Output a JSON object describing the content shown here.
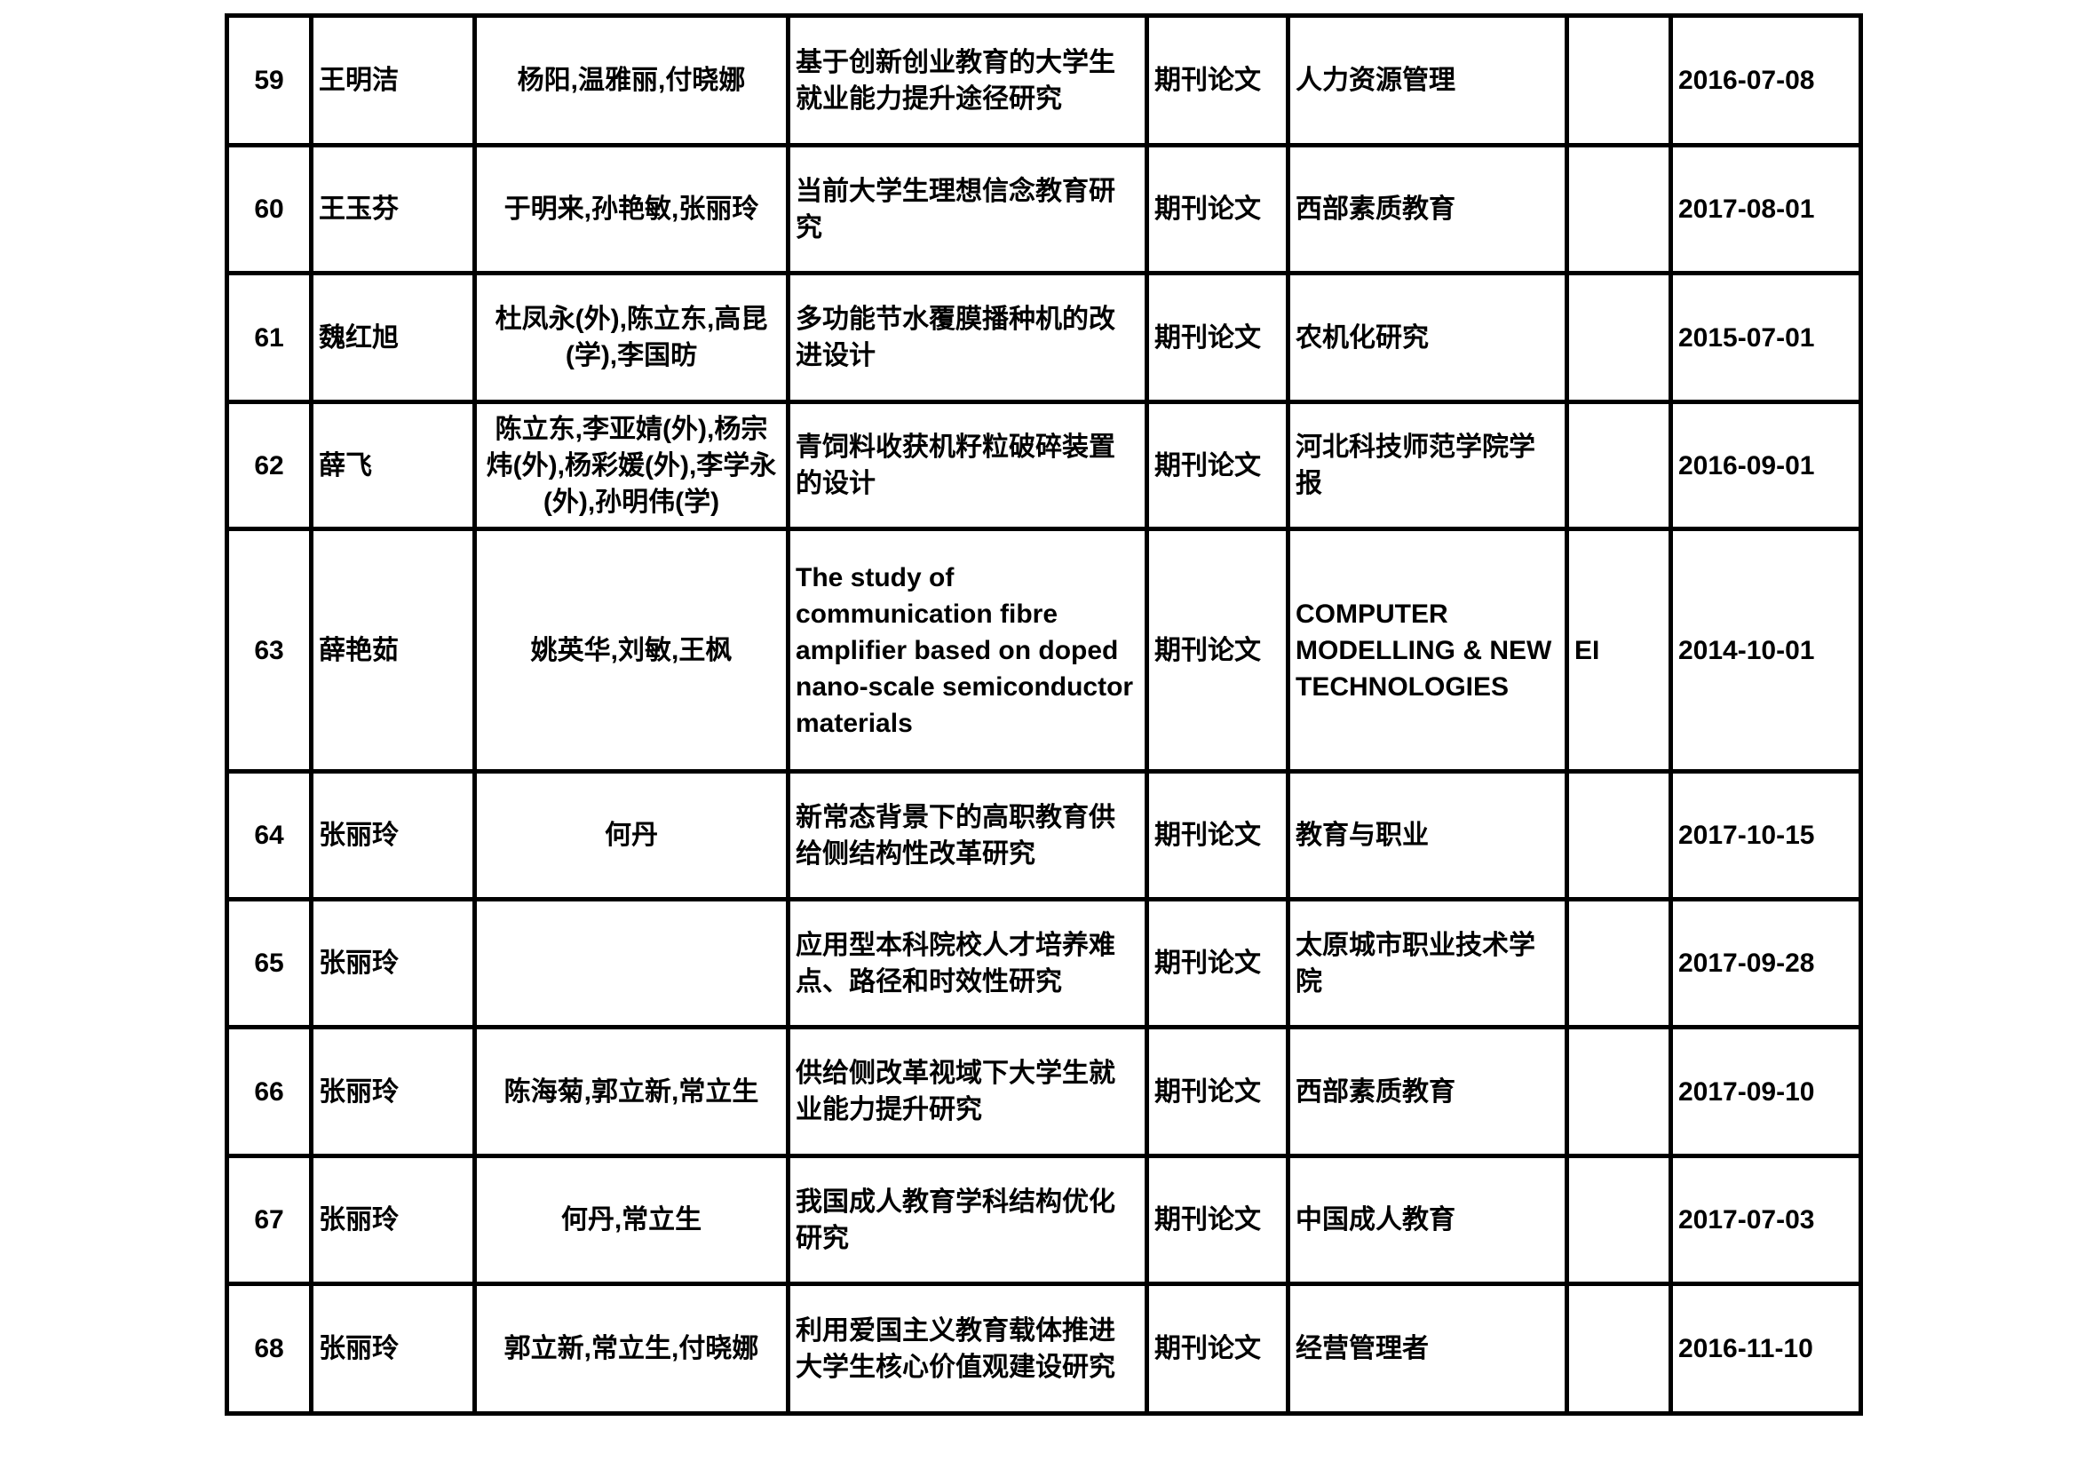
{
  "rows": [
    {
      "no": "59",
      "author": "王明洁",
      "coauthors": "杨阳,温雅丽,付晓娜",
      "title": "基于创新创业教育的大学生就业能力提升途径研究",
      "type": "期刊论文",
      "journal": "人力资源管理",
      "index": "",
      "date": "2016-07-08"
    },
    {
      "no": "60",
      "author": "王玉芬",
      "coauthors": "于明来,孙艳敏,张丽玲",
      "title": "当前大学生理想信念教育研究",
      "type": "期刊论文",
      "journal": "西部素质教育",
      "index": "",
      "date": "2017-08-01"
    },
    {
      "no": "61",
      "author": "魏红旭",
      "coauthors": "杜凤永(外),陈立东,高昆(学),李国昉",
      "title": "多功能节水覆膜播种机的改进设计",
      "type": "期刊论文",
      "journal": "农机化研究",
      "index": "",
      "date": "2015-07-01"
    },
    {
      "no": "62",
      "author": "薛飞",
      "coauthors": "陈立东,李亚婧(外),杨宗炜(外),杨彩媛(外),李学永(外),孙明伟(学)",
      "title": "青饲料收获机籽粒破碎装置的设计",
      "type": "期刊论文",
      "journal": "河北科技师范学院学报",
      "index": "",
      "date": "2016-09-01"
    },
    {
      "no": "63",
      "author": "薛艳茹",
      "coauthors": "姚英华,刘敏,王枫",
      "title": "The study of communication fibre amplifier based on doped nano-scale semiconductor materials",
      "type": "期刊论文",
      "journal": "COMPUTER MODELLING & NEW TECHNOLOGIES",
      "index": "EI",
      "date": "2014-10-01"
    },
    {
      "no": "64",
      "author": "张丽玲",
      "coauthors": "何丹",
      "title": "新常态背景下的高职教育供给侧结构性改革研究",
      "type": "期刊论文",
      "journal": "教育与职业",
      "index": "",
      "date": "2017-10-15"
    },
    {
      "no": "65",
      "author": "张丽玲",
      "coauthors": "",
      "title": "应用型本科院校人才培养难点、路径和时效性研究",
      "type": "期刊论文",
      "journal": "太原城市职业技术学院",
      "index": "",
      "date": "2017-09-28"
    },
    {
      "no": "66",
      "author": "张丽玲",
      "coauthors": "陈海菊,郭立新,常立生",
      "title": "供给侧改革视域下大学生就业能力提升研究",
      "type": "期刊论文",
      "journal": "西部素质教育",
      "index": "",
      "date": "2017-09-10"
    },
    {
      "no": "67",
      "author": "张丽玲",
      "coauthors": "何丹,常立生",
      "title": "我国成人教育学科结构优化研究",
      "type": "期刊论文",
      "journal": "中国成人教育",
      "index": "",
      "date": "2017-07-03"
    },
    {
      "no": "68",
      "author": "张丽玲",
      "coauthors": "郭立新,常立生,付晓娜",
      "title": "利用爱国主义教育载体推进大学生核心价值观建设研究",
      "type": "期刊论文",
      "journal": "经营管理者",
      "index": "",
      "date": "2016-11-10"
    }
  ]
}
